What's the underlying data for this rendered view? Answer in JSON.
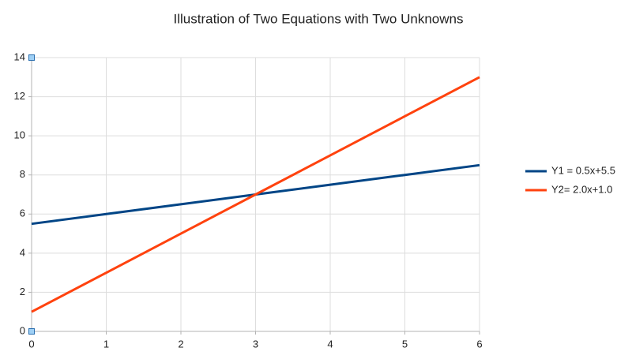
{
  "chart_data": {
    "type": "line",
    "title": "Illustration of Two Equations with Two Unknowns",
    "x": [
      0,
      1,
      2,
      3,
      4,
      5,
      6
    ],
    "series": [
      {
        "name": "Y1 = 0.5x+5.5",
        "color": "#004586",
        "values": [
          5.5,
          6,
          6.5,
          7,
          7.5,
          8,
          8.5
        ]
      },
      {
        "name": "Y2= 2.0x+1.0",
        "color": "#ff420e",
        "values": [
          1,
          3,
          5,
          7,
          9,
          11,
          13
        ]
      }
    ],
    "xlim": [
      0,
      6
    ],
    "xticks": [
      0,
      1,
      2,
      3,
      4,
      5,
      6
    ],
    "ylim": [
      0,
      14
    ],
    "yticks": [
      0,
      2,
      4,
      6,
      8,
      10,
      12,
      14
    ],
    "grid": true,
    "legend": "right"
  }
}
